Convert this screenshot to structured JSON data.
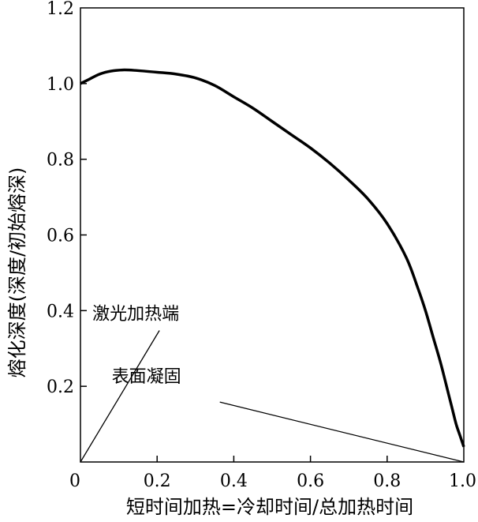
{
  "chart_data": {
    "type": "line",
    "title": "",
    "xlabel": "短时间加热=冷却时间/总加热时间",
    "ylabel": "熔化深度(深度/初始熔深)",
    "xlim": [
      0,
      1.0
    ],
    "ylim": [
      0,
      1.2
    ],
    "grid": false,
    "legend": "none",
    "x_ticks": [
      {
        "value": 0,
        "label": "0"
      },
      {
        "value": 0.2,
        "label": "0.2"
      },
      {
        "value": 0.4,
        "label": "0.4"
      },
      {
        "value": 0.6,
        "label": "0.6"
      },
      {
        "value": 0.8,
        "label": "0.8"
      },
      {
        "value": 1.0,
        "label": "1.0"
      }
    ],
    "y_ticks": [
      {
        "value": 0.2,
        "label": "0.2"
      },
      {
        "value": 0.4,
        "label": "0.4"
      },
      {
        "value": 0.6,
        "label": "0.6"
      },
      {
        "value": 0.8,
        "label": "0.8"
      },
      {
        "value": 1.0,
        "label": "1.0"
      },
      {
        "value": 1.2,
        "label": "1.2"
      }
    ],
    "series": [
      {
        "color": "#000000",
        "x": [
          0,
          0.02,
          0.05,
          0.08,
          0.11,
          0.14,
          0.2,
          0.25,
          0.3,
          0.35,
          0.4,
          0.45,
          0.5,
          0.55,
          0.6,
          0.65,
          0.7,
          0.75,
          0.8,
          0.85,
          0.88,
          0.9,
          0.92,
          0.94,
          0.96,
          0.97,
          0.98,
          0.99,
          1.0
        ],
        "y": [
          1.0,
          1.01,
          1.025,
          1.033,
          1.036,
          1.035,
          1.03,
          1.025,
          1.015,
          0.995,
          0.965,
          0.935,
          0.9,
          0.865,
          0.83,
          0.79,
          0.745,
          0.695,
          0.63,
          0.54,
          0.46,
          0.4,
          0.33,
          0.26,
          0.18,
          0.14,
          0.1,
          0.07,
          0.04
        ]
      }
    ],
    "annotations": [
      {
        "text": "激光加热端",
        "target": [
          0,
          0
        ],
        "text_anchor": [
          0.35,
          0.36
        ]
      },
      {
        "text": "表面凝固",
        "target": [
          1.0,
          0
        ],
        "text_anchor": [
          0.38,
          0.2
        ]
      }
    ]
  }
}
